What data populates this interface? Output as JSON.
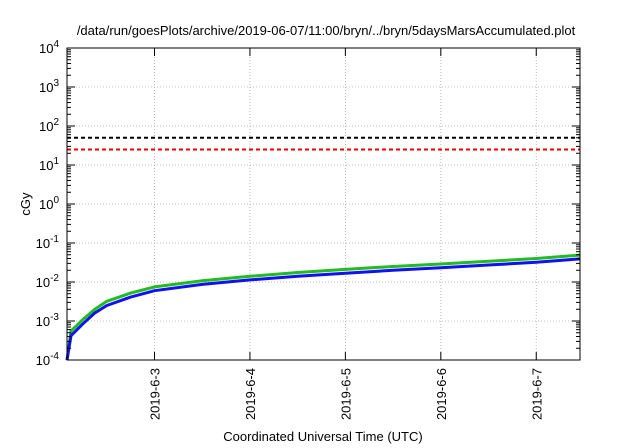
{
  "chart_data": {
    "type": "line",
    "title": "/data/run/goesPlots/archive/2019-06-07/11:00/bryn/../bryn/5daysMarsAccumulated.plot",
    "xlabel": "Coordinated Universal Time (UTC)",
    "ylabel": "cGy",
    "yscale": "log",
    "ylim": [
      0.0001,
      10000
    ],
    "xlim": [
      "2019-06-02T02:00",
      "2019-06-07T11:00"
    ],
    "grid": true,
    "x_ticks": [
      "2019-6-3",
      "2019-6-4",
      "2019-6-5",
      "2019-6-6",
      "2019-6-7"
    ],
    "y_ticks": [
      {
        "base": "10",
        "exp": "-4",
        "value": 0.0001
      },
      {
        "base": "10",
        "exp": "-3",
        "value": 0.001
      },
      {
        "base": "10",
        "exp": "-2",
        "value": 0.01
      },
      {
        "base": "10",
        "exp": "-1",
        "value": 0.1
      },
      {
        "base": "10",
        "exp": "0",
        "value": 1
      },
      {
        "base": "10",
        "exp": "1",
        "value": 10
      },
      {
        "base": "10",
        "exp": "2",
        "value": 100
      },
      {
        "base": "10",
        "exp": "3",
        "value": 1000
      },
      {
        "base": "10",
        "exp": "4",
        "value": 10000
      }
    ],
    "reference_lines": [
      {
        "y": 50,
        "color": "#000000",
        "style": "dashed"
      },
      {
        "y": 25,
        "color": "#ee0000",
        "style": "dashed"
      }
    ],
    "series": [
      {
        "color": "#22bb22",
        "x": [
          "2019-06-02T02:00",
          "2019-06-02T03:00",
          "2019-06-02T06:00",
          "2019-06-02T09:00",
          "2019-06-02T12:00",
          "2019-06-02T18:00",
          "2019-06-03T00:00",
          "2019-06-03T12:00",
          "2019-06-04T00:00",
          "2019-06-04T12:00",
          "2019-06-05T00:00",
          "2019-06-05T12:00",
          "2019-06-06T00:00",
          "2019-06-06T12:00",
          "2019-06-07T00:00",
          "2019-06-07T11:00"
        ],
        "y": [
          0.0001,
          0.00055,
          0.0011,
          0.002,
          0.0032,
          0.0052,
          0.0075,
          0.0108,
          0.014,
          0.0175,
          0.021,
          0.025,
          0.029,
          0.034,
          0.04,
          0.049
        ]
      },
      {
        "color": "#1111ee",
        "x": [
          "2019-06-02T02:00",
          "2019-06-02T03:00",
          "2019-06-02T06:00",
          "2019-06-02T09:00",
          "2019-06-02T12:00",
          "2019-06-02T18:00",
          "2019-06-03T00:00",
          "2019-06-03T12:00",
          "2019-06-04T00:00",
          "2019-06-04T12:00",
          "2019-06-05T00:00",
          "2019-06-05T12:00",
          "2019-06-06T00:00",
          "2019-06-06T12:00",
          "2019-06-07T00:00",
          "2019-06-07T11:00"
        ],
        "y": [
          0.0001,
          0.00042,
          0.00085,
          0.0016,
          0.0025,
          0.0041,
          0.006,
          0.0087,
          0.0113,
          0.0141,
          0.0168,
          0.02,
          0.0233,
          0.0273,
          0.032,
          0.039
        ]
      }
    ]
  }
}
